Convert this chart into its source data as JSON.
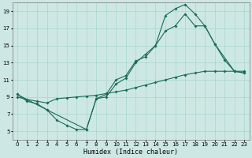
{
  "xlabel": "Humidex (Indice chaleur)",
  "bg_color": "#cde8e4",
  "line_color": "#1a6b5a",
  "grid_color": "#aad4ce",
  "xlim": [
    -0.5,
    23.5
  ],
  "ylim": [
    4,
    20
  ],
  "xticks": [
    0,
    1,
    2,
    3,
    4,
    5,
    6,
    7,
    8,
    9,
    10,
    11,
    12,
    13,
    14,
    15,
    16,
    17,
    18,
    19,
    20,
    21,
    22,
    23
  ],
  "yticks": [
    5,
    7,
    9,
    11,
    13,
    15,
    17,
    19
  ],
  "line1_x": [
    0,
    1,
    2,
    3,
    4,
    5,
    6,
    7,
    8,
    9,
    10,
    11,
    12,
    13,
    14,
    15,
    16,
    17,
    18,
    19,
    20,
    21,
    22,
    23
  ],
  "line1_y": [
    9.3,
    8.5,
    8.2,
    7.5,
    6.3,
    5.7,
    5.2,
    5.2,
    8.8,
    9.0,
    10.5,
    11.2,
    13.0,
    14.0,
    15.0,
    18.5,
    19.3,
    19.8,
    18.7,
    17.3,
    15.2,
    13.3,
    12.0,
    11.8
  ],
  "line2_x": [
    0,
    3,
    7,
    8,
    9,
    10,
    11,
    12,
    13,
    14,
    15,
    16,
    17,
    18,
    19,
    20,
    22,
    23
  ],
  "line2_y": [
    9.3,
    7.5,
    5.2,
    8.8,
    9.3,
    11.0,
    11.5,
    13.2,
    13.7,
    15.0,
    16.7,
    17.3,
    18.7,
    17.3,
    17.3,
    15.2,
    12.0,
    11.8
  ],
  "line3_x": [
    0,
    1,
    2,
    3,
    4,
    5,
    6,
    7,
    8,
    9,
    10,
    11,
    12,
    13,
    14,
    15,
    16,
    17,
    18,
    19,
    20,
    21,
    22,
    23
  ],
  "line3_y": [
    9.0,
    8.7,
    8.5,
    8.3,
    8.8,
    8.9,
    9.0,
    9.1,
    9.2,
    9.4,
    9.6,
    9.8,
    10.1,
    10.4,
    10.7,
    11.0,
    11.3,
    11.6,
    11.8,
    12.0,
    12.0,
    12.0,
    12.0,
    12.0
  ]
}
